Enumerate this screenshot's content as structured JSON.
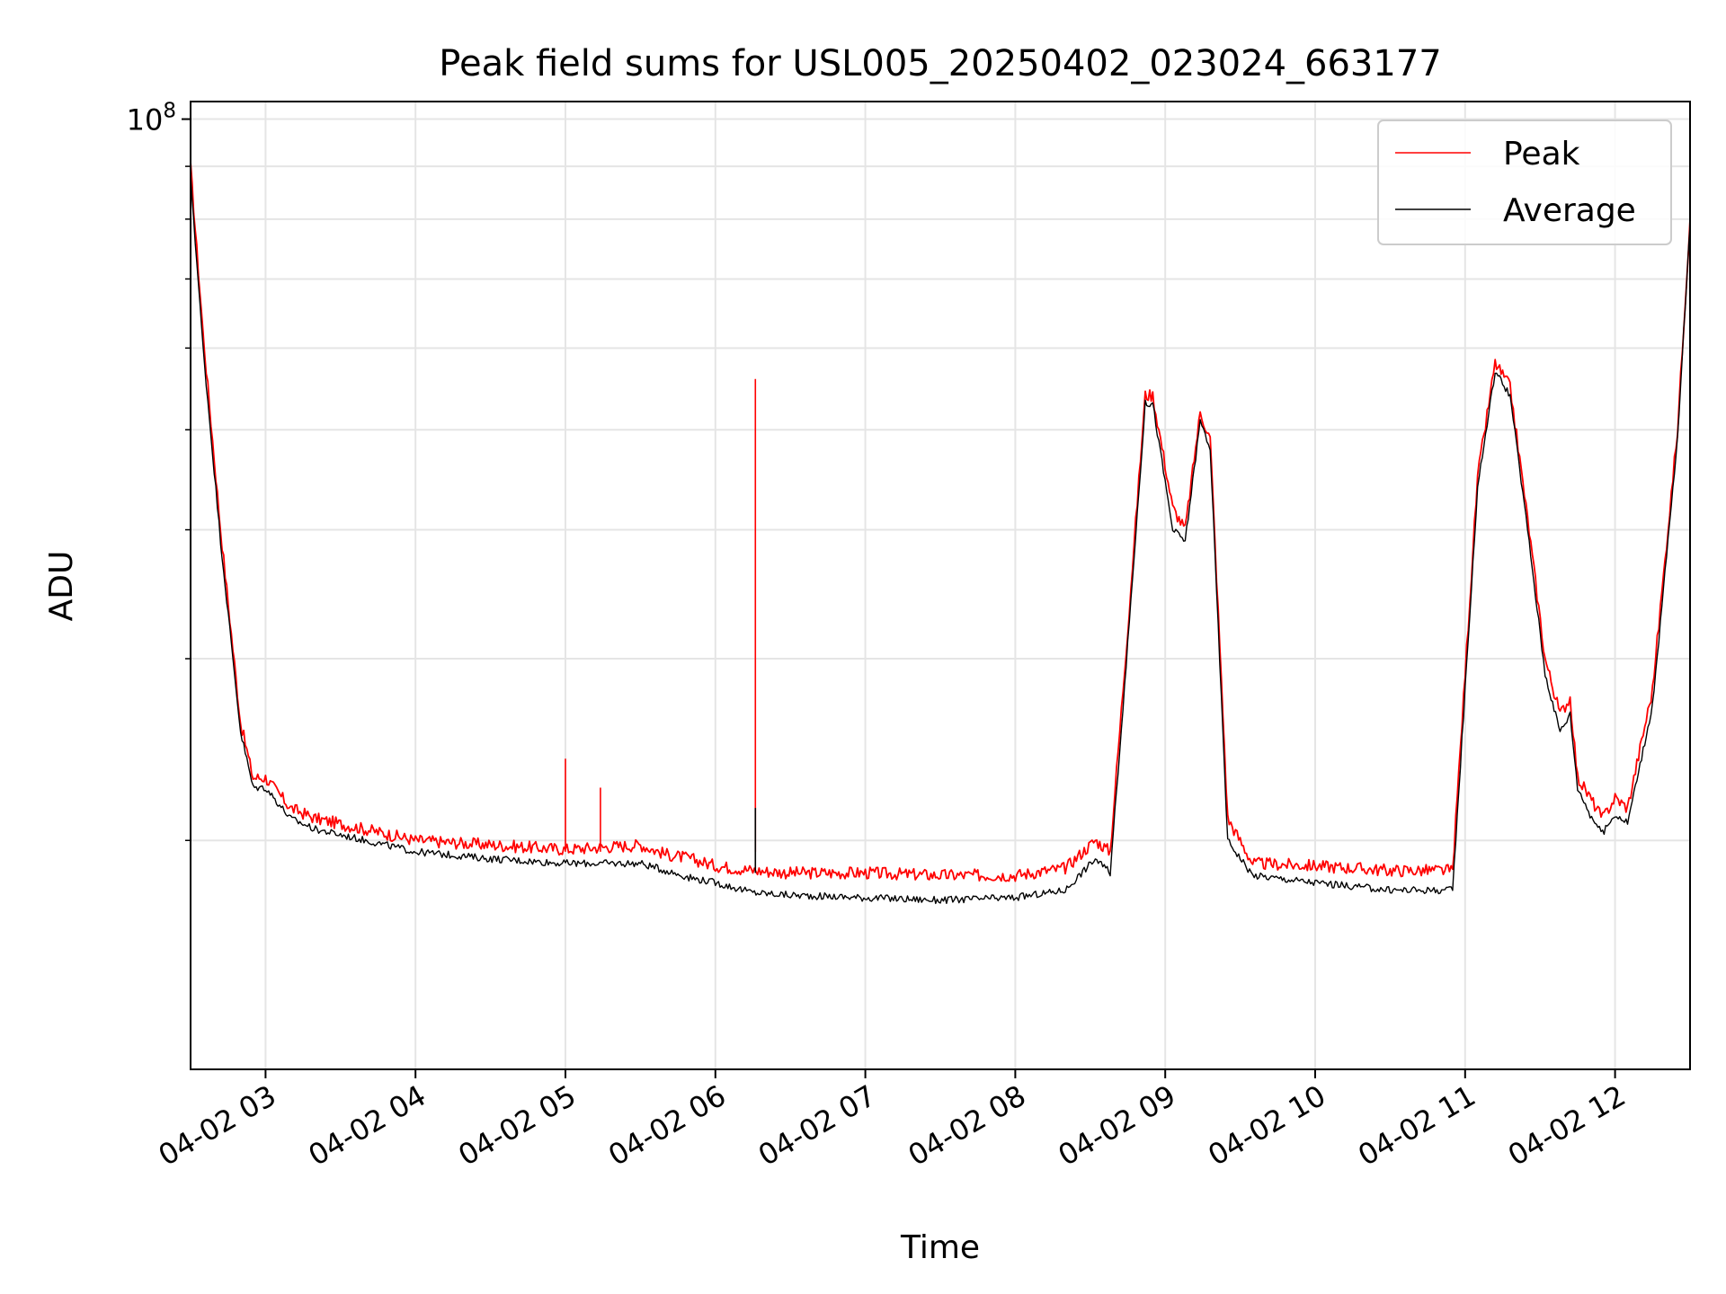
{
  "chart_data": {
    "type": "line",
    "title": "Peak field sums for USL005_20250402_023024_663177",
    "xlabel": "Time",
    "ylabel": "ADU",
    "yscale": "log",
    "xlim": [
      "04-02 02:30",
      "04-02 12:30"
    ],
    "ylim": [
      12000000,
      104000000
    ],
    "x_ticks": [
      "04-02 03",
      "04-02 04",
      "04-02 05",
      "04-02 06",
      "04-02 07",
      "04-02 08",
      "04-02 09",
      "04-02 10",
      "04-02 11",
      "04-02 12"
    ],
    "y_tick_label": {
      "base": "10",
      "exp": "8"
    },
    "grid": true,
    "legend": "top-right",
    "series": [
      {
        "name": "Peak",
        "color": "#ff0000",
        "x": [
          "04-02 02:30",
          "04-02 02:35",
          "04-02 02:42",
          "04-02 02:50",
          "04-02 02:55",
          "04-02 03:00",
          "04-02 03:10",
          "04-02 03:20",
          "04-02 03:40",
          "04-02 04:00",
          "04-02 04:30",
          "04-02 05:00",
          "04-02 05:30",
          "04-02 05:40",
          "04-02 05:50",
          "04-02 06:00",
          "04-02 06:15",
          "04-02 06:30",
          "04-02 07:00",
          "04-02 07:30",
          "04-02 08:00",
          "04-02 08:20",
          "04-02 08:32",
          "04-02 08:38",
          "04-02 08:45",
          "04-02 08:52",
          "04-02 08:55",
          "04-02 09:03",
          "04-02 09:08",
          "04-02 09:14",
          "04-02 09:18",
          "04-02 09:25",
          "04-02 09:35",
          "04-02 10:00",
          "04-02 10:30",
          "04-02 10:55",
          "04-02 11:05",
          "04-02 11:12",
          "04-02 11:18",
          "04-02 11:25",
          "04-02 11:32",
          "04-02 11:38",
          "04-02 11:42",
          "04-02 11:45",
          "04-02 11:50",
          "04-02 11:55",
          "04-02 12:00",
          "04-02 12:05",
          "04-02 12:15",
          "04-02 12:25",
          "04-02 12:30"
        ],
        "values": [
          90000000,
          62000000,
          40000000,
          26000000,
          23000000,
          23000000,
          21500000,
          21000000,
          20500000,
          20000000,
          19800000,
          19600000,
          19800000,
          19400000,
          19200000,
          18900000,
          18700000,
          18600000,
          18600000,
          18500000,
          18500000,
          18800000,
          20000000,
          19500000,
          32000000,
          54000000,
          54000000,
          42000000,
          40000000,
          52000000,
          49000000,
          21000000,
          19000000,
          18900000,
          18700000,
          18700000,
          45000000,
          58000000,
          55000000,
          41000000,
          30000000,
          26500000,
          27500000,
          23000000,
          22000000,
          21000000,
          22000000,
          21500000,
          28000000,
          50000000,
          80000000
        ]
      },
      {
        "name": "Average",
        "color": "#000000",
        "x": [
          "04-02 02:30",
          "04-02 02:35",
          "04-02 02:42",
          "04-02 02:50",
          "04-02 02:55",
          "04-02 03:00",
          "04-02 03:10",
          "04-02 03:20",
          "04-02 03:40",
          "04-02 04:00",
          "04-02 04:30",
          "04-02 05:00",
          "04-02 05:30",
          "04-02 05:40",
          "04-02 05:50",
          "04-02 06:00",
          "04-02 06:15",
          "04-02 06:30",
          "04-02 07:00",
          "04-02 07:30",
          "04-02 08:00",
          "04-02 08:20",
          "04-02 08:32",
          "04-02 08:38",
          "04-02 08:45",
          "04-02 08:52",
          "04-02 08:55",
          "04-02 09:03",
          "04-02 09:08",
          "04-02 09:14",
          "04-02 09:18",
          "04-02 09:25",
          "04-02 09:35",
          "04-02 10:00",
          "04-02 10:30",
          "04-02 10:55",
          "04-02 11:05",
          "04-02 11:12",
          "04-02 11:18",
          "04-02 11:25",
          "04-02 11:32",
          "04-02 11:38",
          "04-02 11:42",
          "04-02 11:45",
          "04-02 11:50",
          "04-02 11:55",
          "04-02 12:00",
          "04-02 12:05",
          "04-02 12:15",
          "04-02 12:25",
          "04-02 12:30"
        ],
        "values": [
          88000000,
          60000000,
          39000000,
          25500000,
          22500000,
          22500000,
          21000000,
          20500000,
          20000000,
          19500000,
          19200000,
          19000000,
          19000000,
          18700000,
          18400000,
          18200000,
          17800000,
          17700000,
          17600000,
          17500000,
          17600000,
          17900000,
          19200000,
          18600000,
          31000000,
          53000000,
          53000000,
          40000000,
          39000000,
          51000000,
          48000000,
          20000000,
          18500000,
          18200000,
          17900000,
          17900000,
          44000000,
          57000000,
          54000000,
          40000000,
          29000000,
          25500000,
          26500000,
          22500000,
          21200000,
          20300000,
          21200000,
          20800000,
          27000000,
          49000000,
          79000000
        ]
      }
    ],
    "annotations": [
      {
        "series": "Peak",
        "x": "04-02 05:00",
        "value": 24000000,
        "note": "spike"
      },
      {
        "series": "Peak",
        "x": "04-02 05:14",
        "value": 22500000,
        "note": "spike"
      },
      {
        "series": "Peak",
        "x": "04-02 06:16",
        "value": 56000000,
        "note": "spike"
      },
      {
        "series": "Average",
        "x": "04-02 06:16",
        "value": 21500000,
        "note": "spike"
      }
    ]
  }
}
